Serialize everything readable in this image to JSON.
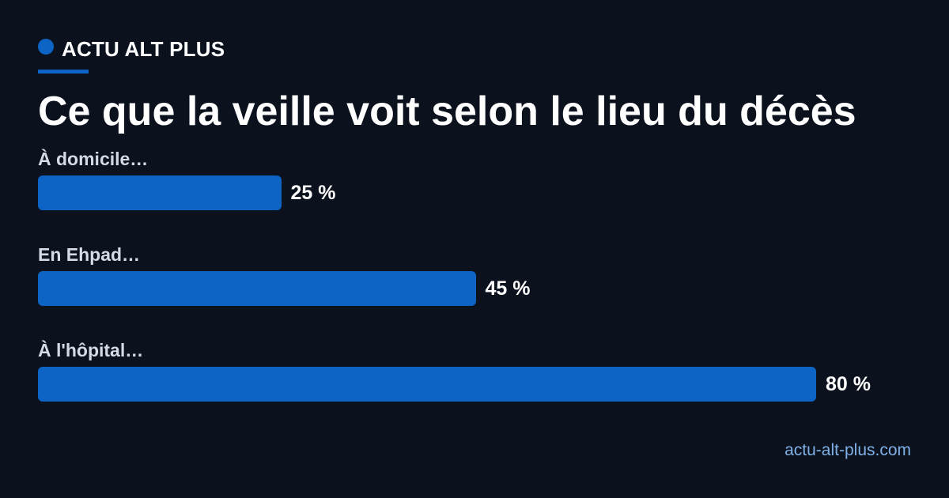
{
  "brand": {
    "name": "ACTU ALT PLUS"
  },
  "title": "Ce que la veille voit selon le lieu du décès",
  "footer": {
    "site": "actu-alt-plus.com"
  },
  "colors": {
    "background": "#0b121e",
    "accent": "#0d64c5",
    "label": "#d3dbe6",
    "link": "#7fb0e6"
  },
  "chart_data": {
    "type": "bar",
    "orientation": "horizontal",
    "title": "Ce que la veille voit selon le lieu du décès",
    "categories": [
      "À domicile…",
      "En Ehpad…",
      "À l'hôpital…"
    ],
    "values": [
      25,
      45,
      80
    ],
    "value_labels": [
      "25 %",
      "45 %",
      "80 %"
    ],
    "unit": "%",
    "xlim": [
      0,
      90
    ],
    "grid": false,
    "legend": "none"
  }
}
